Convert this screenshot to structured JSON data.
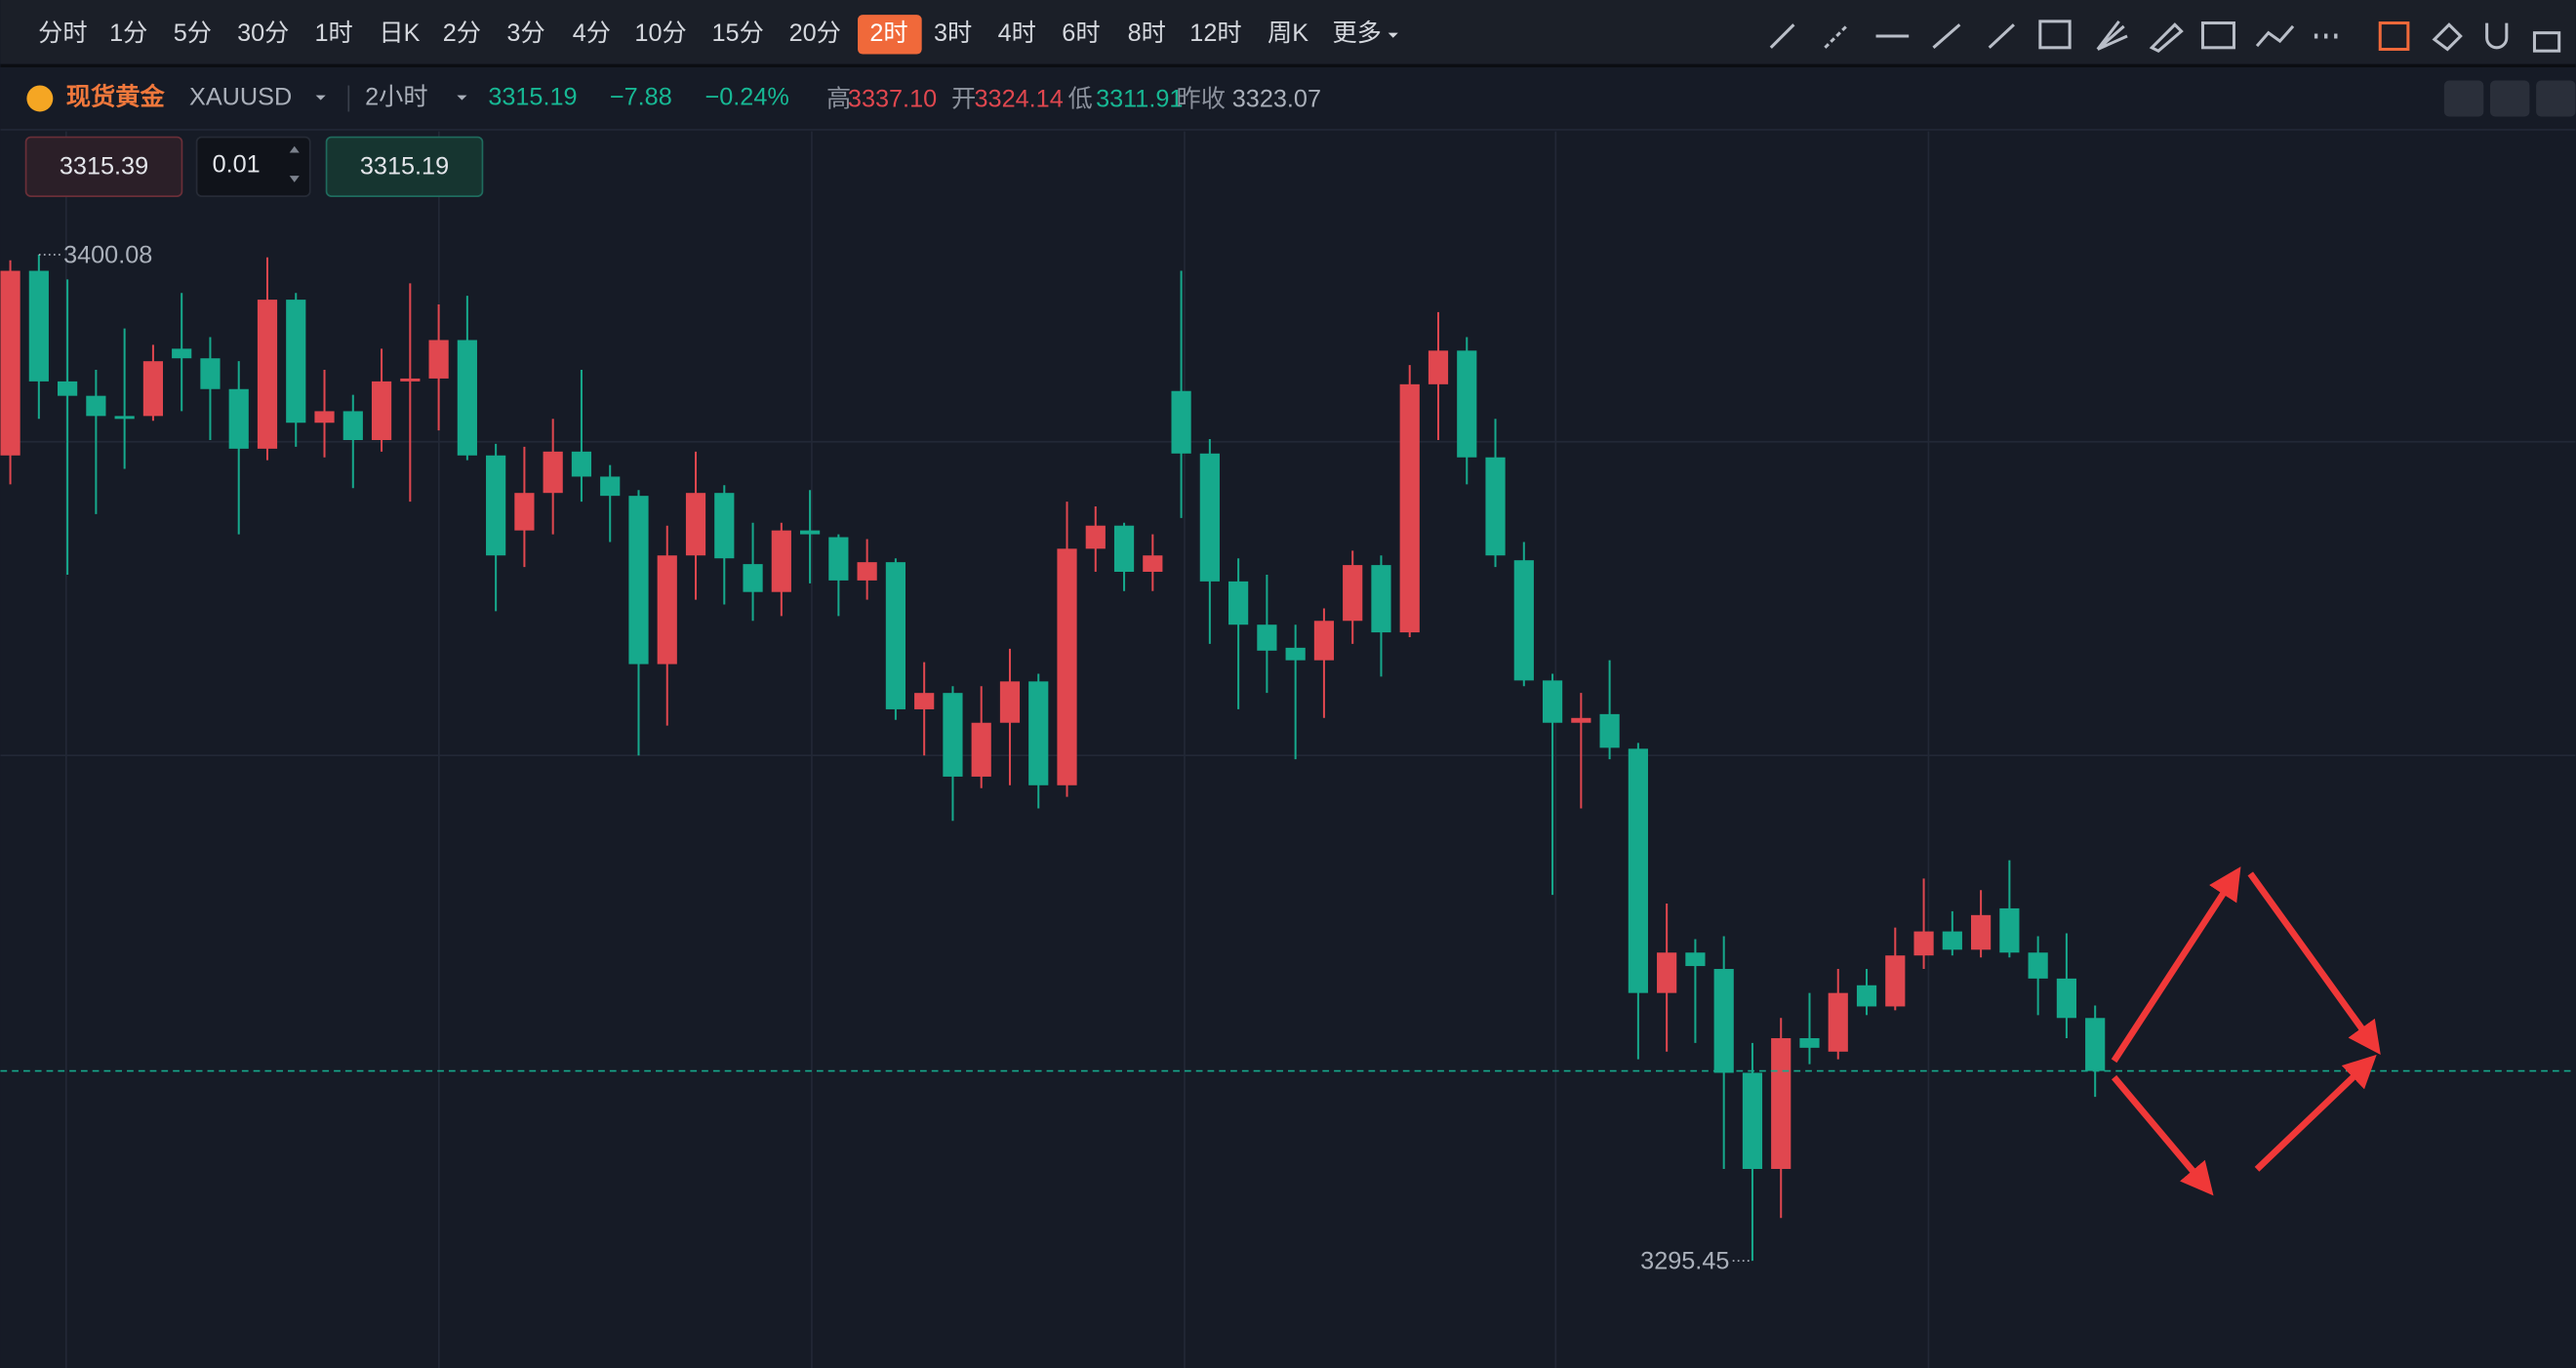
{
  "toolbar": {
    "periods": [
      "分时",
      "1分",
      "5分",
      "30分",
      "1时",
      "日K",
      "2分",
      "3分",
      "4分",
      "10分",
      "15分",
      "20分",
      "2时",
      "3时",
      "4时",
      "6时",
      "8时",
      "12时",
      "周K",
      "更多"
    ]
  },
  "header": {
    "name": "现货黄金",
    "symbol": "XAUUSD",
    "interval": "2小时",
    "price": "3315.19",
    "change": "−7.88",
    "change_pct": "−0.24%",
    "stats": [
      {
        "label": "高",
        "value": "3337.10"
      },
      {
        "label": "开",
        "value": "3324.14"
      },
      {
        "label": "低",
        "value": "3311.91"
      },
      {
        "label": "昨收",
        "value": "3323.07"
      }
    ]
  },
  "order": {
    "sell": "3315.39",
    "lots": "0.01",
    "buy": "3315.19"
  },
  "chart_data": {
    "type": "candlestick",
    "up_color": "#e0474f",
    "down_color": "#16a98c",
    "ylim": [
      3284.3,
      3412.9
    ],
    "open": [
      3379.2,
      3398.4,
      3386.9,
      3385.4,
      3383.3,
      3383.3,
      3390.3,
      3389.3,
      3386.1,
      3379.9,
      3395.4,
      3382.6,
      3383.8,
      3380.8,
      3386.9,
      3387.2,
      3391.2,
      3379.2,
      3371.4,
      3375.3,
      3379.6,
      3377.0,
      3375.0,
      3357.5,
      3368.8,
      3375.3,
      3367.9,
      3365.0,
      3371.4,
      3370.7,
      3366.2,
      3368.1,
      3352.8,
      3354.5,
      3345.8,
      3351.4,
      3355.7,
      3344.9,
      3369.5,
      3371.9,
      3367.1,
      3385.9,
      3379.4,
      3366.1,
      3361.6,
      3359.2,
      3357.9,
      3362.0,
      3367.8,
      3360.8,
      3386.6,
      3390.1,
      3379.0,
      3368.3,
      3355.8,
      3351.4,
      3352.3,
      3348.7,
      3323.3,
      3327.5,
      3325.8,
      3315.0,
      3305.0,
      3318.6,
      3317.2,
      3324.1,
      3321.9,
      3327.2,
      3329.7,
      3327.8,
      3332.1,
      3327.5,
      3324.8,
      3320.7
    ],
    "high": [
      3399.5,
      3400.08,
      3397.5,
      3388.1,
      3392.4,
      3390.7,
      3396.1,
      3391.5,
      3389.0,
      3399.8,
      3396.1,
      3388.1,
      3385.5,
      3390.3,
      3397.1,
      3394.9,
      3395.8,
      3380.4,
      3380.1,
      3383.0,
      3388.1,
      3378.2,
      3375.6,
      3371.9,
      3379.6,
      3376.1,
      3372.2,
      3372.2,
      3375.6,
      3371.0,
      3370.5,
      3368.5,
      3357.7,
      3355.2,
      3355.2,
      3359.1,
      3356.5,
      3374.4,
      3373.9,
      3372.2,
      3371.0,
      3398.4,
      3380.9,
      3368.5,
      3366.8,
      3361.6,
      3363.3,
      3369.3,
      3368.8,
      3388.6,
      3394.1,
      3391.5,
      3383.0,
      3370.2,
      3356.5,
      3354.5,
      3357.9,
      3349.3,
      3332.6,
      3328.9,
      3329.2,
      3318.1,
      3320.7,
      3323.3,
      3325.8,
      3325.8,
      3330.1,
      3335.2,
      3331.8,
      3334.0,
      3337.1,
      3329.2,
      3329.5,
      3322.0
    ],
    "low": [
      3376.2,
      3383.0,
      3366.8,
      3373.1,
      3377.8,
      3382.8,
      3383.8,
      3380.8,
      3371.0,
      3378.7,
      3380.1,
      3379.0,
      3375.8,
      3379.6,
      3374.4,
      3381.8,
      3378.7,
      3363.0,
      3367.6,
      3371.0,
      3374.4,
      3370.2,
      3348.0,
      3351.1,
      3364.2,
      3363.7,
      3362.0,
      3362.5,
      3365.9,
      3362.5,
      3364.2,
      3351.7,
      3348.0,
      3341.2,
      3344.6,
      3344.9,
      3342.5,
      3343.7,
      3367.1,
      3365.1,
      3365.1,
      3372.7,
      3359.6,
      3352.8,
      3354.5,
      3347.6,
      3351.9,
      3359.6,
      3356.2,
      3360.3,
      3380.8,
      3376.2,
      3367.6,
      3355.2,
      3333.5,
      3342.5,
      3347.6,
      3316.4,
      3317.2,
      3318.1,
      3305.0,
      3295.45,
      3299.9,
      3315.9,
      3316.4,
      3321.0,
      3321.5,
      3325.8,
      3327.2,
      3327.0,
      3327.0,
      3321.0,
      3318.6,
      3312.5
    ],
    "close": [
      3398.4,
      3386.9,
      3385.4,
      3383.3,
      3383.0,
      3389.0,
      3389.3,
      3386.1,
      3379.9,
      3395.4,
      3382.6,
      3383.8,
      3380.8,
      3386.9,
      3387.2,
      3391.2,
      3379.2,
      3368.8,
      3375.3,
      3379.6,
      3377.0,
      3375.0,
      3357.5,
      3368.8,
      3375.3,
      3368.5,
      3365.0,
      3371.4,
      3371.0,
      3366.2,
      3368.1,
      3352.8,
      3354.5,
      3345.8,
      3351.4,
      3355.7,
      3344.9,
      3369.5,
      3371.9,
      3367.1,
      3368.8,
      3379.4,
      3366.1,
      3361.6,
      3358.9,
      3357.9,
      3362.0,
      3367.8,
      3360.8,
      3386.6,
      3390.1,
      3379.0,
      3368.8,
      3355.8,
      3351.4,
      3351.9,
      3348.8,
      3323.3,
      3327.5,
      3326.1,
      3315.0,
      3305.0,
      3318.6,
      3317.6,
      3323.3,
      3321.9,
      3327.2,
      3329.7,
      3327.8,
      3331.4,
      3327.5,
      3324.8,
      3320.7,
      3315.19
    ]
  }
}
